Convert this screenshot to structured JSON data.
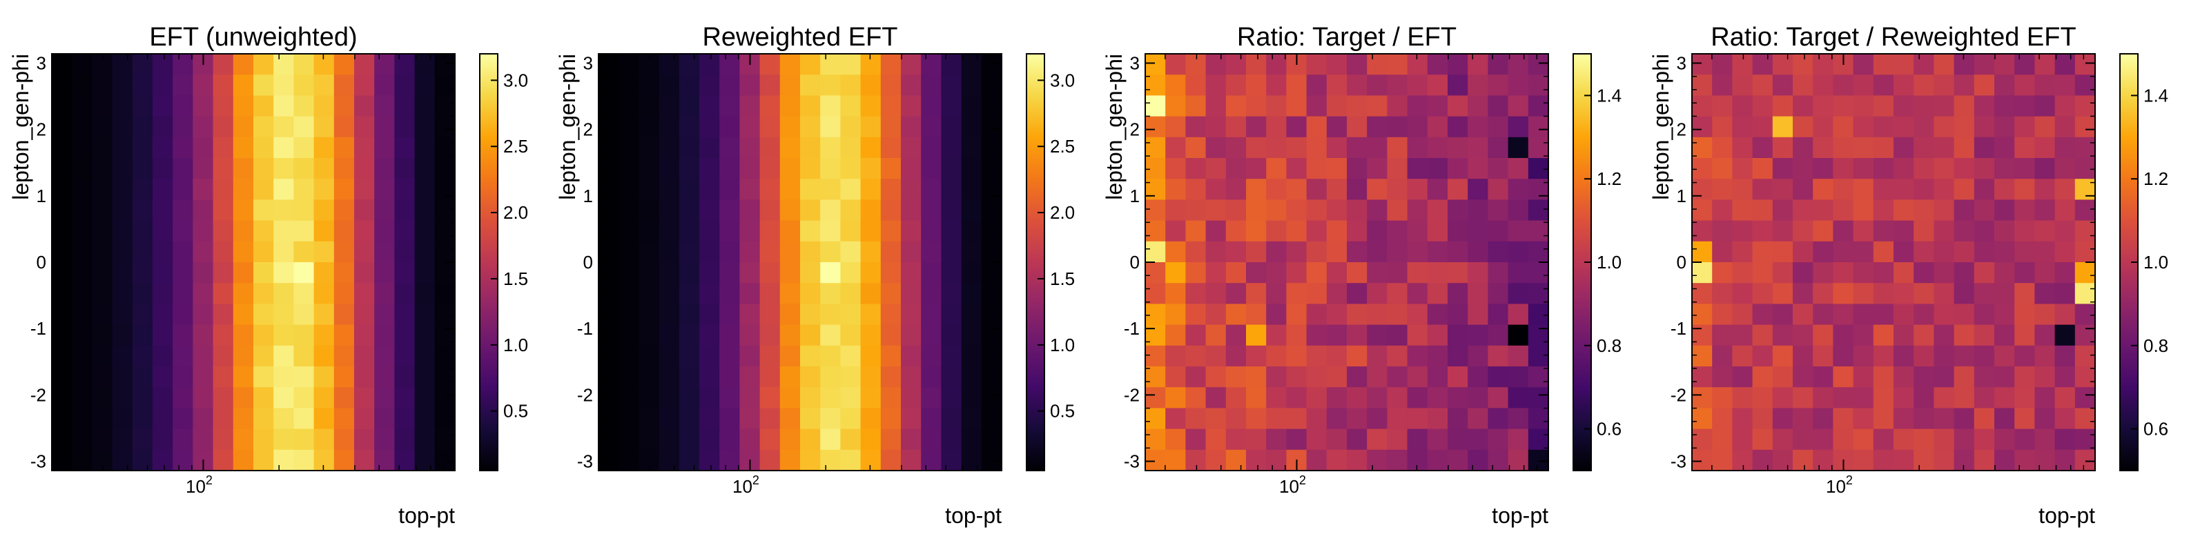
{
  "chart_data": [
    {
      "type": "heatmap",
      "title": "EFT (unweighted)",
      "xlabel": "top-pt",
      "ylabel": "lepton_gen-phi",
      "x_scale": "log",
      "xlim": [
        25,
        1000
      ],
      "ylim": [
        -3.14,
        3.14
      ],
      "x_tick_labels": [
        "10^2"
      ],
      "x_ticks": [
        100
      ],
      "y_ticks": [
        -3,
        -2,
        -1,
        0,
        1,
        2,
        3
      ],
      "y_tick_labels": [
        "-3",
        "-2",
        "-1",
        "0",
        "1",
        "2",
        "3"
      ],
      "colorbar": {
        "range": [
          0.05,
          3.2
        ],
        "ticks": [
          0.5,
          1.0,
          1.5,
          2.0,
          2.5,
          3.0
        ],
        "tick_labels": [
          "0.5",
          "1.0",
          "1.5",
          "2.0",
          "2.5",
          "3.0"
        ],
        "colormap": "inferno"
      },
      "nx": 20,
      "ny": 20,
      "column_profile": [
        0.05,
        0.09,
        0.14,
        0.25,
        0.4,
        0.6,
        0.9,
        1.3,
        1.8,
        2.4,
        2.85,
        3.0,
        2.95,
        2.7,
        2.2,
        1.6,
        1.05,
        0.6,
        0.25,
        0.1
      ],
      "peak_cell": {
        "col": 12,
        "row": 10,
        "value": 3.2
      }
    },
    {
      "type": "heatmap",
      "title": "Reweighted EFT",
      "xlabel": "top-pt",
      "ylabel": "lepton_gen-phi",
      "x_scale": "log",
      "xlim": [
        25,
        1000
      ],
      "ylim": [
        -3.14,
        3.14
      ],
      "x_tick_labels": [
        "10^2"
      ],
      "x_ticks": [
        100
      ],
      "y_ticks": [
        -3,
        -2,
        -1,
        0,
        1,
        2,
        3
      ],
      "y_tick_labels": [
        "-3",
        "-2",
        "-1",
        "0",
        "1",
        "2",
        "3"
      ],
      "colorbar": {
        "range": [
          0.05,
          3.2
        ],
        "ticks": [
          0.5,
          1.0,
          1.5,
          2.0,
          2.5,
          3.0
        ],
        "tick_labels": [
          "0.5",
          "1.0",
          "1.5",
          "2.0",
          "2.5",
          "3.0"
        ],
        "colormap": "inferno"
      },
      "nx": 20,
      "ny": 20,
      "column_profile": [
        0.05,
        0.08,
        0.13,
        0.22,
        0.38,
        0.58,
        0.9,
        1.35,
        1.85,
        2.4,
        2.8,
        2.95,
        2.9,
        2.6,
        2.1,
        1.5,
        0.95,
        0.5,
        0.2,
        0.08
      ],
      "peak_cell": {
        "col": 11,
        "row": 10,
        "value": 3.2
      }
    },
    {
      "type": "heatmap",
      "title": "Ratio: Target / EFT",
      "xlabel": "top-pt",
      "ylabel": "lepton_gen-phi",
      "x_scale": "log",
      "xlim": [
        25,
        1000
      ],
      "ylim": [
        -3.14,
        3.14
      ],
      "x_tick_labels": [
        "10^2"
      ],
      "x_ticks": [
        100
      ],
      "y_ticks": [
        -3,
        -2,
        -1,
        0,
        1,
        2,
        3
      ],
      "y_tick_labels": [
        "-3",
        "-2",
        "-1",
        "0",
        "1",
        "2",
        "3"
      ],
      "colorbar": {
        "range": [
          0.5,
          1.5
        ],
        "ticks": [
          0.6,
          0.8,
          1.0,
          1.2,
          1.4
        ],
        "tick_labels": [
          "0.6",
          "0.8",
          "1.0",
          "1.2",
          "1.4"
        ],
        "colormap": "inferno"
      },
      "nx": 20,
      "ny": 20,
      "column_profile": [
        1.22,
        1.12,
        1.06,
        1.05,
        1.05,
        1.04,
        1.02,
        1.0,
        1.0,
        0.99,
        0.98,
        0.97,
        0.96,
        0.95,
        0.93,
        0.92,
        0.9,
        0.88,
        0.85,
        0.8
      ],
      "noise_amplitude": 0.12,
      "highlight_cells": [
        {
          "col": 0,
          "row": 2,
          "value": 1.5
        },
        {
          "col": 0,
          "row": 9,
          "value": 1.45
        },
        {
          "col": 1,
          "row": 10,
          "value": 1.3
        },
        {
          "col": 5,
          "row": 13,
          "value": 1.3
        },
        {
          "col": 18,
          "row": 13,
          "value": 0.5
        },
        {
          "col": 18,
          "row": 4,
          "value": 0.55
        },
        {
          "col": 19,
          "row": 19,
          "value": 0.55
        }
      ]
    },
    {
      "type": "heatmap",
      "title": "Ratio: Target / Reweighted EFT",
      "xlabel": "top-pt",
      "ylabel": "lepton_gen-phi",
      "x_scale": "log",
      "xlim": [
        25,
        1000
      ],
      "ylim": [
        -3.14,
        3.14
      ],
      "x_tick_labels": [
        "10^2"
      ],
      "x_ticks": [
        100
      ],
      "y_ticks": [
        -3,
        -2,
        -1,
        0,
        1,
        2,
        3
      ],
      "y_tick_labels": [
        "-3",
        "-2",
        "-1",
        "0",
        "1",
        "2",
        "3"
      ],
      "colorbar": {
        "range": [
          0.5,
          1.5
        ],
        "ticks": [
          0.6,
          0.8,
          1.0,
          1.2,
          1.4
        ],
        "tick_labels": [
          "0.6",
          "0.8",
          "1.0",
          "1.2",
          "1.4"
        ],
        "colormap": "inferno"
      },
      "nx": 20,
      "ny": 20,
      "column_profile": [
        1.08,
        1.02,
        1.0,
        1.0,
        1.0,
        0.99,
        1.0,
        1.0,
        1.0,
        1.0,
        0.99,
        0.99,
        0.99,
        0.98,
        0.98,
        0.97,
        0.97,
        0.96,
        0.95,
        0.96
      ],
      "noise_amplitude": 0.1,
      "highlight_cells": [
        {
          "col": 0,
          "row": 10,
          "value": 1.45
        },
        {
          "col": 0,
          "row": 9,
          "value": 1.3
        },
        {
          "col": 19,
          "row": 11,
          "value": 1.45
        },
        {
          "col": 19,
          "row": 10,
          "value": 1.3
        },
        {
          "col": 19,
          "row": 6,
          "value": 1.35
        },
        {
          "col": 18,
          "row": 13,
          "value": 0.55
        },
        {
          "col": 4,
          "row": 3,
          "value": 1.35
        }
      ]
    }
  ]
}
